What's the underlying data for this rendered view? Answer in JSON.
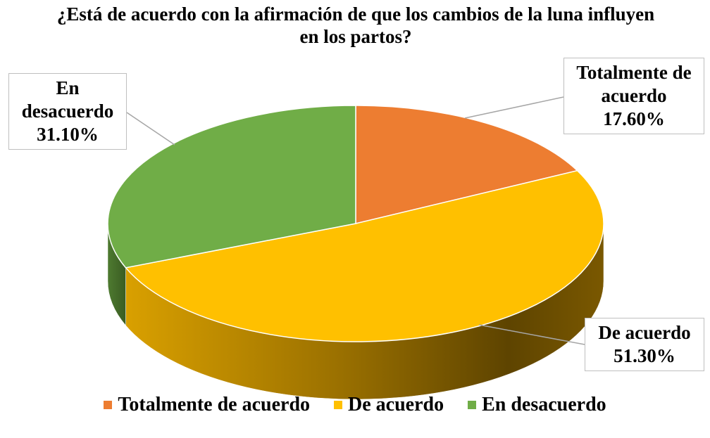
{
  "chart_data": {
    "type": "pie",
    "title": "¿Está de acuerdo con la afirmación de que los cambios de la luna influyen en los partos?",
    "categories": [
      "Totalmente de acuerdo",
      "De acuerdo",
      "En desacuerdo"
    ],
    "values": [
      17.6,
      51.3,
      31.1
    ],
    "value_labels": [
      "17.60%",
      "51.30%",
      "31.10%"
    ],
    "colors": [
      "#ed7d31",
      "#ffc000",
      "#70ad47"
    ],
    "legend": "bottom"
  }
}
